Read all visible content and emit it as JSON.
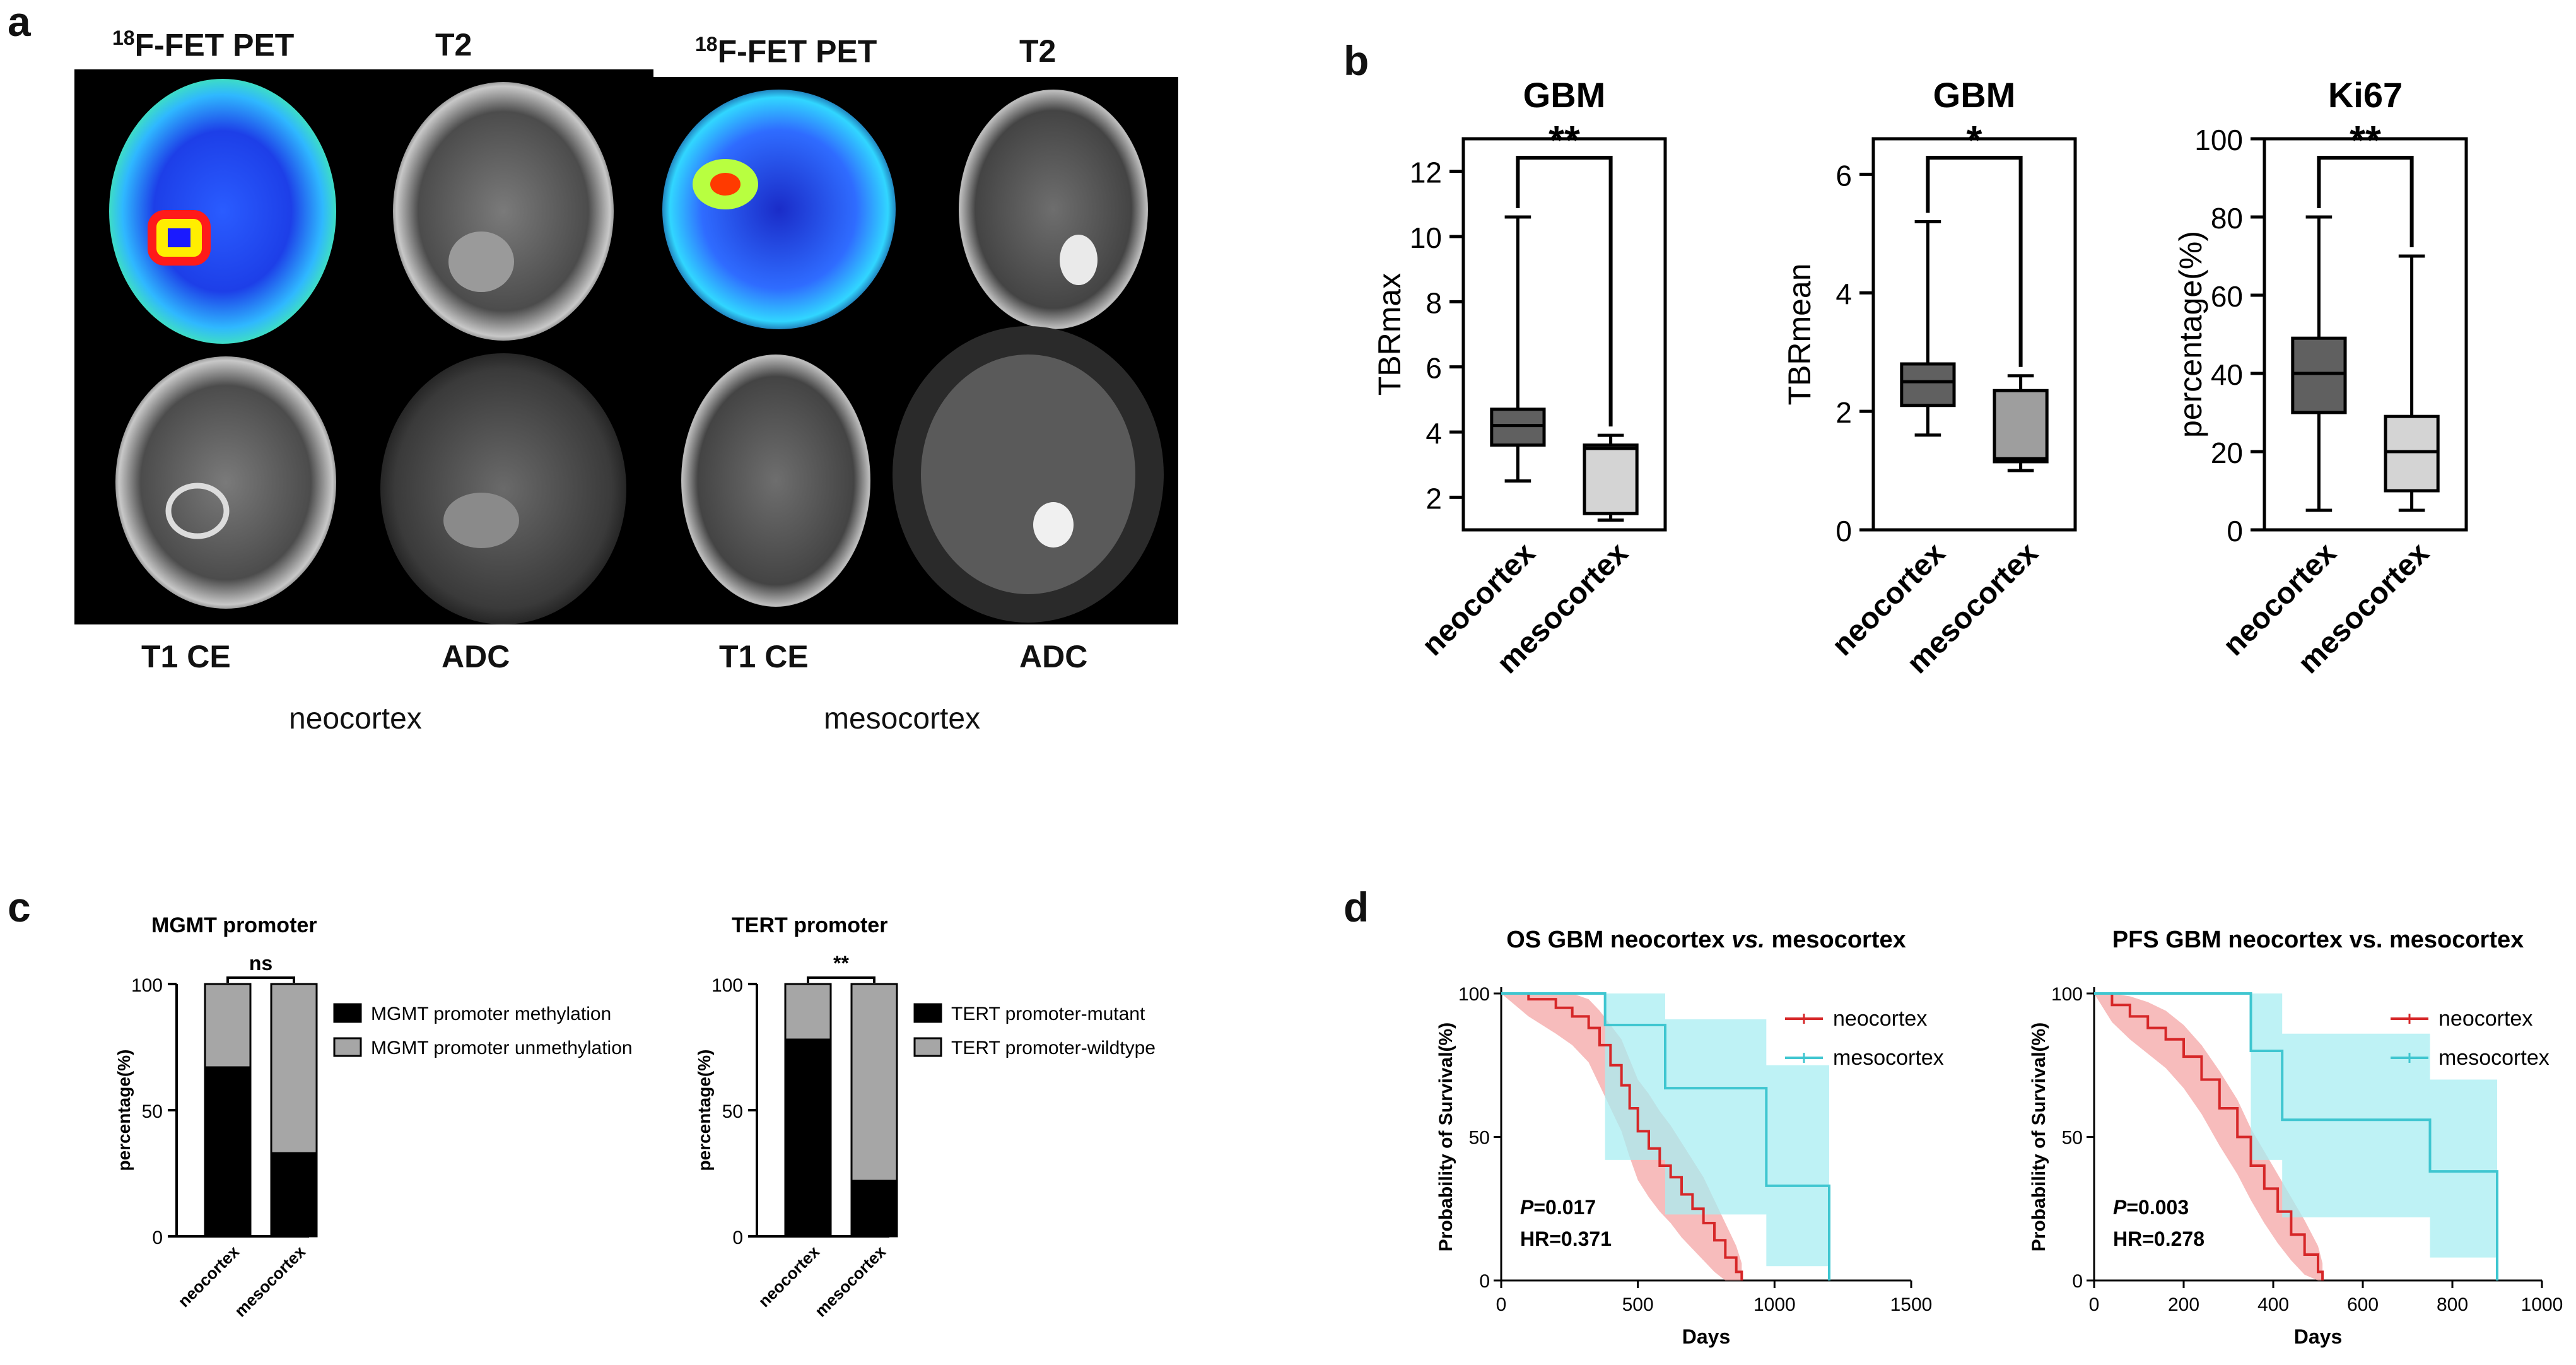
{
  "panels": {
    "a": "a",
    "b": "b",
    "c": "c",
    "d": "d"
  },
  "panel_a": {
    "left": {
      "top_labels": [
        "F-FET PET",
        "T2"
      ],
      "pet_superscript": "18",
      "bottom_labels": [
        "T1 CE",
        "ADC"
      ],
      "caption": "neocortex"
    },
    "right": {
      "top_labels": [
        "F-FET PET",
        "T2"
      ],
      "pet_superscript": "18",
      "bottom_labels": [
        "T1 CE",
        "ADC"
      ],
      "caption": "mesocortex"
    }
  },
  "colors": {
    "dark_box": "#606060",
    "light_box": "#d4d4d4",
    "mid_box": "#9e9e9e",
    "bar_black": "#000000",
    "bar_grey": "#a6a6a6",
    "km_red": "#d62728",
    "km_red_band": "#f4a6a6",
    "km_cyan": "#3fc6d0",
    "km_cyan_band": "#a8eef2"
  },
  "chart_data": [
    {
      "id": "b1",
      "type": "box",
      "title": "GBM",
      "ylabel": "TBRmax",
      "categories": [
        "neocortex",
        "mesocortex"
      ],
      "ylim": [
        1,
        13
      ],
      "yticks": [
        "2",
        "4",
        "6",
        "8",
        "10",
        "12"
      ],
      "boxes": [
        {
          "min": 2.5,
          "q1": 3.6,
          "median": 4.2,
          "q3": 4.7,
          "max": 10.6
        },
        {
          "min": 1.3,
          "q1": 1.5,
          "median": 3.5,
          "q3": 3.6,
          "max": 3.9
        }
      ],
      "significance": "**"
    },
    {
      "id": "b2",
      "type": "box",
      "title": "GBM",
      "ylabel": "TBRmean",
      "categories": [
        "neocortex",
        "mesocortex"
      ],
      "ylim": [
        0,
        6.6
      ],
      "yticks": [
        "0",
        "2",
        "4",
        "6"
      ],
      "boxes": [
        {
          "min": 1.6,
          "q1": 2.1,
          "median": 2.5,
          "q3": 2.8,
          "max": 5.2
        },
        {
          "min": 1.0,
          "q1": 1.15,
          "median": 1.2,
          "q3": 2.35,
          "max": 2.6
        }
      ],
      "significance": "*"
    },
    {
      "id": "b3",
      "type": "box",
      "title": "Ki67",
      "ylabel": "percentage(%)",
      "categories": [
        "neocortex",
        "mesocortex"
      ],
      "ylim": [
        0,
        100
      ],
      "yticks": [
        "0",
        "20",
        "40",
        "60",
        "80",
        "100"
      ],
      "boxes": [
        {
          "min": 5,
          "q1": 30,
          "median": 40,
          "q3": 49,
          "max": 80
        },
        {
          "min": 5,
          "q1": 10,
          "median": 20,
          "q3": 29,
          "max": 70
        }
      ],
      "significance": "**"
    },
    {
      "id": "c1",
      "type": "stacked_bar",
      "title": "MGMT promoter",
      "ylabel": "percentage(%)",
      "categories": [
        "neocortex",
        "mesocortex"
      ],
      "ylim": [
        0,
        100
      ],
      "yticks": [
        "0",
        "50",
        "100"
      ],
      "series": [
        {
          "name": "MGMT promoter methylation",
          "values": [
            67,
            33
          ]
        },
        {
          "name": "MGMT promoter unmethylation",
          "values": [
            33,
            67
          ]
        }
      ],
      "significance": "ns"
    },
    {
      "id": "c2",
      "type": "stacked_bar",
      "title": "TERT promoter",
      "ylabel": "percentage(%)",
      "categories": [
        "neocortex",
        "mesocortex"
      ],
      "ylim": [
        0,
        100
      ],
      "yticks": [
        "0",
        "50",
        "100"
      ],
      "series": [
        {
          "name": "TERT promoter-mutant",
          "values": [
            78,
            22
          ]
        },
        {
          "name": "TERT promoter-wildtype",
          "values": [
            22,
            78
          ]
        }
      ],
      "significance": "**"
    },
    {
      "id": "d1",
      "type": "line",
      "title_parts": [
        "OS GBM neocortex ",
        "vs.",
        " mesocortex"
      ],
      "xlabel": "Days",
      "ylabel": "Probability of Survival(%)",
      "xlim": [
        0,
        1500
      ],
      "ylim": [
        0,
        100
      ],
      "xticks": [
        "0",
        "500",
        "1000",
        "1500"
      ],
      "yticks": [
        "0",
        "50",
        "100"
      ],
      "stats": {
        "p_label": "P",
        "p_value": "=0.017",
        "hr": "HR=0.371"
      },
      "series": [
        {
          "name": "neocortex",
          "x": [
            0,
            100,
            200,
            260,
            320,
            360,
            400,
            440,
            470,
            500,
            540,
            580,
            620,
            660,
            700,
            740,
            780,
            820,
            860,
            880
          ],
          "y": [
            100,
            98,
            95,
            92,
            88,
            82,
            75,
            68,
            60,
            52,
            46,
            40,
            36,
            30,
            25,
            20,
            14,
            8,
            3,
            0
          ],
          "band_lo": [
            100,
            92,
            86,
            82,
            76,
            68,
            60,
            52,
            43,
            35,
            29,
            24,
            20,
            15,
            11,
            7,
            3,
            0,
            0,
            0
          ],
          "band_hi": [
            100,
            100,
            100,
            100,
            98,
            94,
            89,
            84,
            77,
            70,
            65,
            59,
            54,
            48,
            42,
            36,
            28,
            20,
            12,
            6
          ]
        },
        {
          "name": "mesocortex",
          "x": [
            0,
            380,
            380,
            600,
            600,
            970,
            970,
            1200,
            1200
          ],
          "y": [
            100,
            100,
            89,
            89,
            67,
            67,
            33,
            33,
            0
          ],
          "band_lo": [
            100,
            100,
            42,
            42,
            23,
            23,
            5,
            5,
            0
          ],
          "band_hi": [
            100,
            100,
            100,
            100,
            91,
            91,
            75,
            75,
            0
          ]
        }
      ]
    },
    {
      "id": "d2",
      "type": "line",
      "title": "PFS GBM neocortex vs. mesocortex",
      "xlabel": "Days",
      "ylabel": "Probability of Survival(%)",
      "xlim": [
        0,
        1000
      ],
      "ylim": [
        0,
        100
      ],
      "xticks": [
        "0",
        "200",
        "400",
        "600",
        "800",
        "1000"
      ],
      "yticks": [
        "0",
        "50",
        "100"
      ],
      "stats": {
        "p_label": "P",
        "p_value": "=0.003",
        "hr": "HR=0.278"
      },
      "series": [
        {
          "name": "neocortex",
          "x": [
            0,
            40,
            80,
            120,
            160,
            200,
            240,
            280,
            320,
            350,
            380,
            410,
            440,
            470,
            500,
            510
          ],
          "y": [
            100,
            96,
            92,
            88,
            84,
            78,
            70,
            60,
            50,
            40,
            32,
            24,
            16,
            9,
            3,
            0
          ],
          "band_lo": [
            100,
            90,
            84,
            79,
            74,
            67,
            58,
            47,
            37,
            28,
            20,
            13,
            7,
            2,
            0,
            0
          ],
          "band_hi": [
            100,
            100,
            99,
            97,
            94,
            89,
            82,
            73,
            63,
            53,
            45,
            37,
            29,
            21,
            12,
            6
          ]
        },
        {
          "name": "mesocortex",
          "x": [
            0,
            350,
            350,
            420,
            420,
            750,
            750,
            900,
            900
          ],
          "y": [
            100,
            100,
            80,
            80,
            56,
            56,
            38,
            38,
            0
          ],
          "band_lo": [
            100,
            100,
            42,
            42,
            22,
            22,
            8,
            8,
            0
          ],
          "band_hi": [
            100,
            100,
            100,
            100,
            86,
            86,
            70,
            70,
            0
          ]
        }
      ]
    }
  ]
}
